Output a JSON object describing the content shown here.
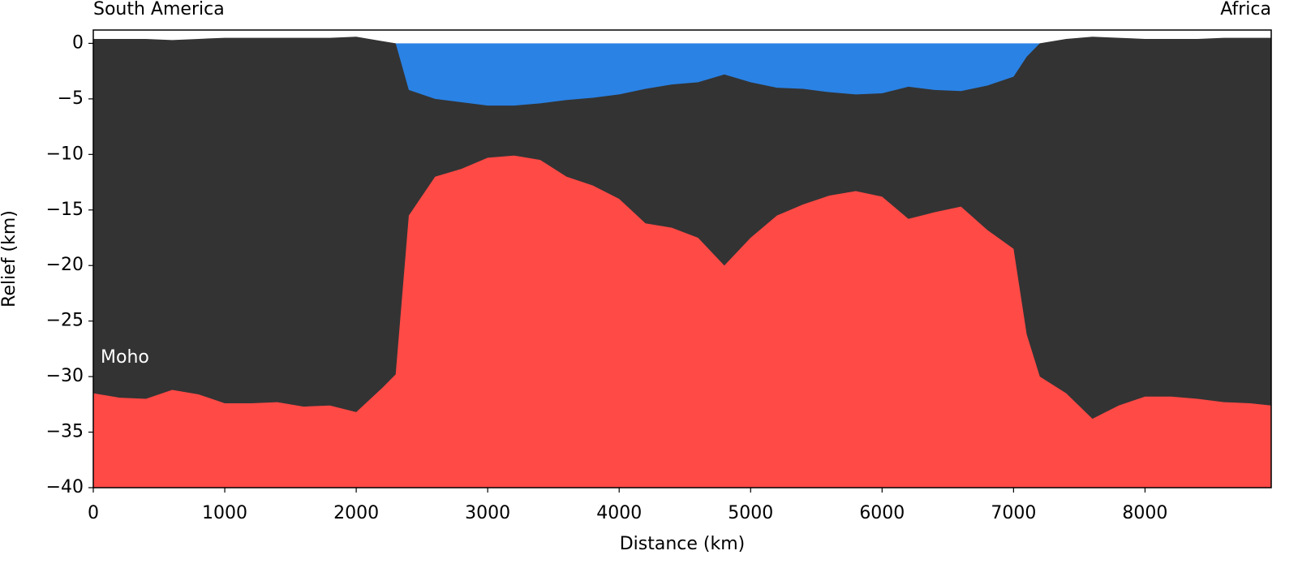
{
  "chart_data": {
    "type": "area",
    "annotations": {
      "left": "South America",
      "right": "Africa"
    },
    "xlabel": "Distance (km)",
    "ylabel": "Relief (km)",
    "x": [
      0,
      200,
      400,
      600,
      800,
      1000,
      1200,
      1400,
      1600,
      1800,
      2000,
      2200,
      2300,
      2400,
      2600,
      2800,
      3000,
      3200,
      3400,
      3600,
      3800,
      4000,
      4200,
      4400,
      4600,
      4800,
      5000,
      5200,
      5400,
      5600,
      5800,
      6000,
      6200,
      6400,
      6600,
      6800,
      7000,
      7100,
      7200,
      7400,
      7600,
      7800,
      8000,
      8200,
      8400,
      8600,
      8800,
      8960
    ],
    "water_color": "#2a82e4",
    "series": [
      {
        "color": "#333333",
        "values": [
          0.4,
          0.4,
          0.4,
          0.3,
          0.4,
          0.5,
          0.5,
          0.5,
          0.5,
          0.5,
          0.6,
          0.2,
          0,
          -4.2,
          -5.0,
          -5.3,
          -5.6,
          -5.6,
          -5.4,
          -5.1,
          -4.9,
          -4.6,
          -4.1,
          -3.7,
          -3.5,
          -2.8,
          -3.5,
          -4.0,
          -4.1,
          -4.4,
          -4.6,
          -4.5,
          -3.9,
          -4.2,
          -4.3,
          -3.8,
          -3.0,
          -1.2,
          0,
          0.4,
          0.6,
          0.5,
          0.4,
          0.4,
          0.4,
          0.5,
          0.5,
          0.5
        ]
      },
      {
        "name": "Moho",
        "color": "#ff4a46",
        "values": [
          -31.5,
          -31.9,
          -32.0,
          -31.2,
          -31.6,
          -32.4,
          -32.4,
          -32.3,
          -32.7,
          -32.6,
          -33.2,
          -31.0,
          -29.8,
          -15.5,
          -12.0,
          -11.3,
          -10.3,
          -10.1,
          -10.5,
          -12.0,
          -12.8,
          -14.0,
          -16.2,
          -16.6,
          -17.5,
          -20.0,
          -17.5,
          -15.5,
          -14.5,
          -13.7,
          -13.3,
          -13.8,
          -15.8,
          -15.2,
          -14.7,
          -16.8,
          -18.5,
          -26.2,
          -30.0,
          -31.5,
          -33.8,
          -32.6,
          -31.8,
          -31.8,
          -32.0,
          -32.3,
          -32.4,
          -32.6
        ]
      }
    ],
    "xlim": [
      0,
      8960
    ],
    "ylim": [
      -40,
      1.2
    ],
    "xticks": [
      0,
      1000,
      2000,
      3000,
      4000,
      5000,
      6000,
      7000,
      8000
    ],
    "yticks": [
      0,
      {
        "value": -5,
        "label": "−5"
      },
      {
        "value": -10,
        "label": "−10"
      },
      {
        "value": -15,
        "label": "−15"
      },
      {
        "value": -20,
        "label": "−20"
      },
      {
        "value": -25,
        "label": "−25"
      },
      {
        "value": -30,
        "label": "−30"
      },
      {
        "value": -35,
        "label": "−35"
      },
      {
        "value": -40,
        "label": "−40"
      }
    ]
  }
}
